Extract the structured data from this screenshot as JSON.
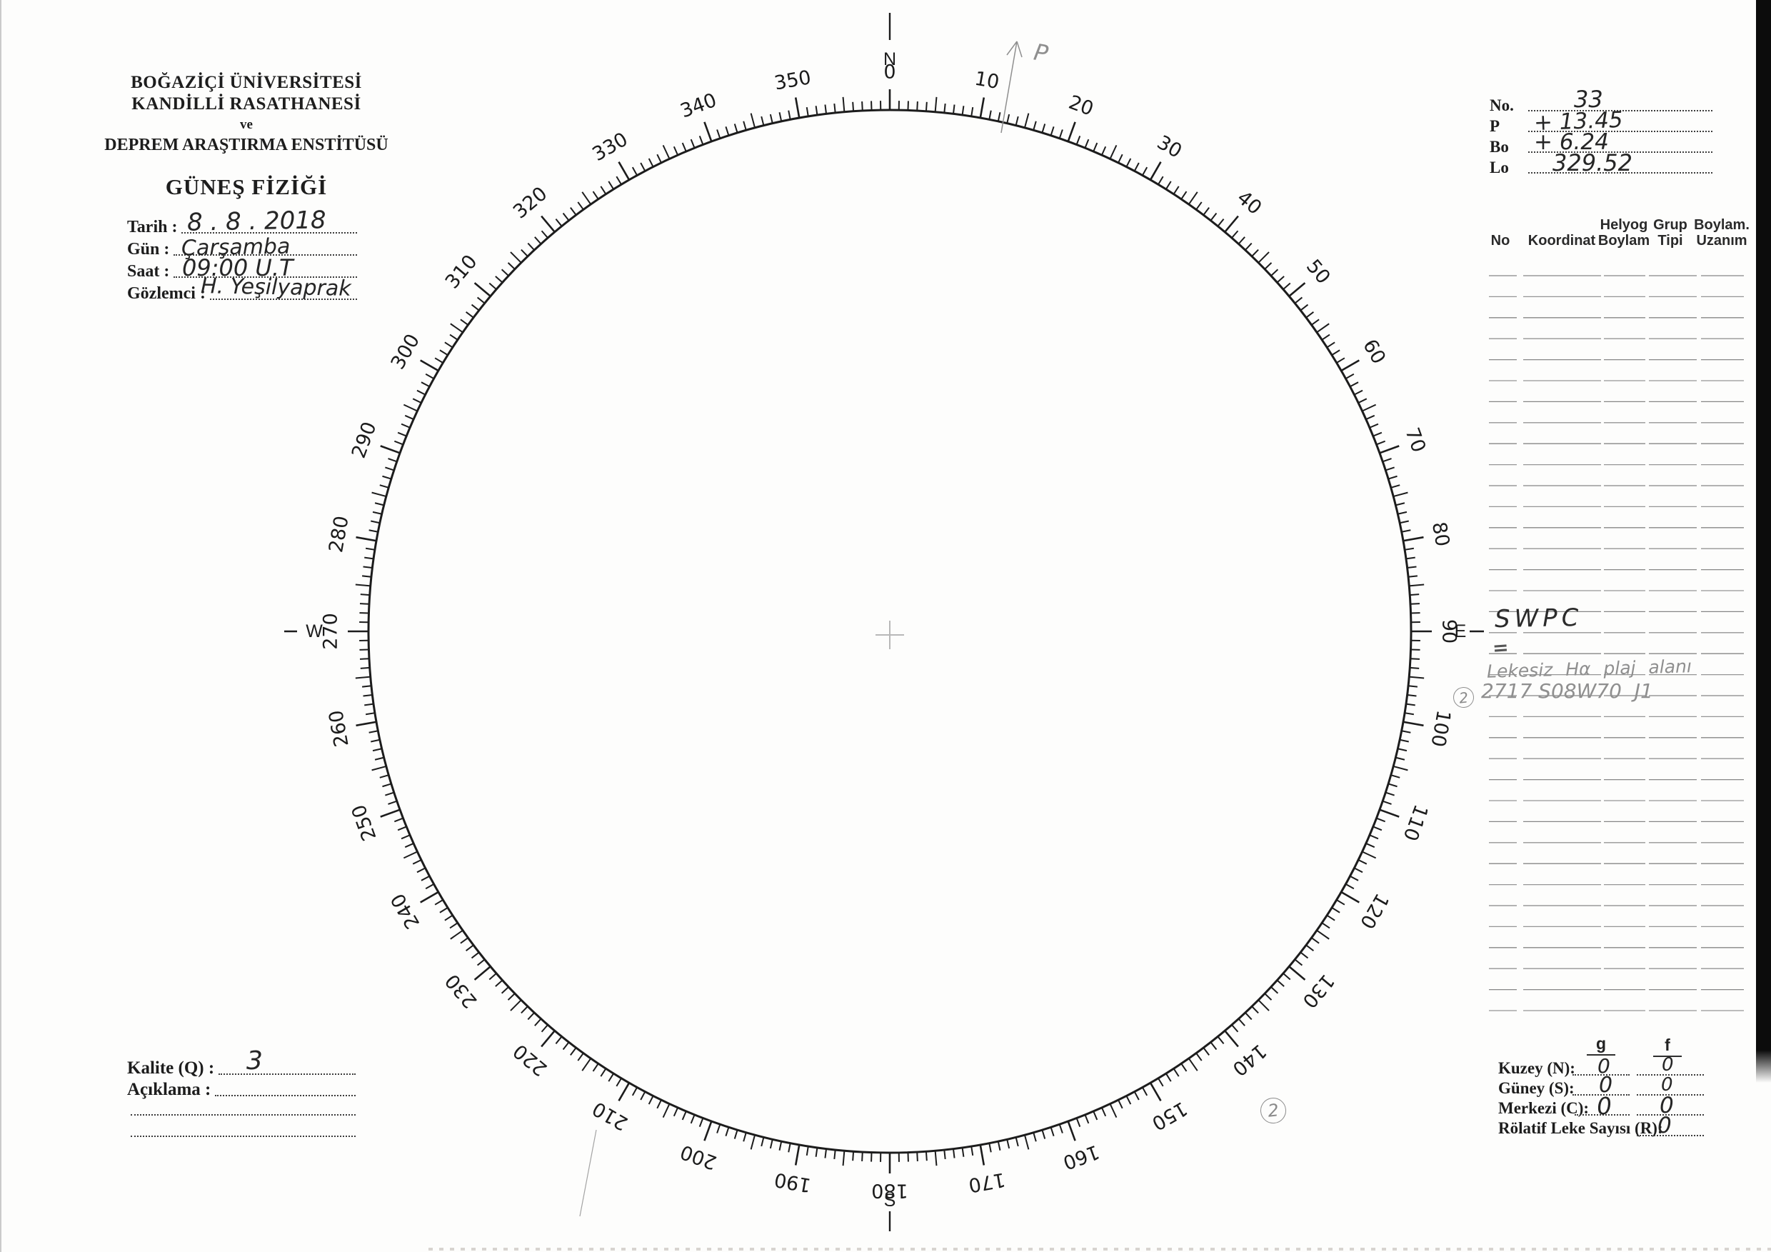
{
  "colors": {
    "ink": "#1c1c1c",
    "pencil": "#8f8f8f",
    "paper": "#fdfdfc"
  },
  "header": {
    "line1": "BOĞAZİÇİ ÜNİVERSİTESİ",
    "line2": "KANDİLLİ RASATHANESİ",
    "line3": "ve",
    "line4": "DEPREM ARAŞTIRMA ENSTİTÜSÜ",
    "form_title": "GÜNEŞ FİZİĞİ"
  },
  "observation": {
    "tarih_label": "Tarih :",
    "tarih_value": "8 . 8 . 2018",
    "gun_label": "Gün :",
    "gun_value": "Çarşamba",
    "saat_label": "Saat :",
    "saat_value": "09:00  U.T",
    "gozlemci_label": "Gözlemci :",
    "gozlemci_value": "H. Yeşilyaprak"
  },
  "ephemeris": {
    "no_label": "No.",
    "no_value": "33",
    "p_label": "P",
    "p_value": "+ 13.45",
    "bo_label": "Bo",
    "bo_value": "+ 6.24",
    "lo_label": "Lo",
    "lo_value": "329.52"
  },
  "group_table": {
    "headers": [
      {
        "l1": "No",
        "l2": ""
      },
      {
        "l1": "Koordinat",
        "l2": ""
      },
      {
        "l1": "Helyog",
        "l2": "Boylam"
      },
      {
        "l1": "Grup",
        "l2": "Tipi"
      },
      {
        "l1": "Boylam.",
        "l2": "Uzanım"
      }
    ],
    "row_count": 36,
    "annotations": {
      "source": "SWPC",
      "dash": "=",
      "note": "Lekesiz  Hα  plaj  alanı",
      "group_marker": "2",
      "entry_no": "2717",
      "entry_coord": "S08W70",
      "entry_type": "J1"
    }
  },
  "dial": {
    "degree_labels": [
      "0",
      "10",
      "20",
      "30",
      "40",
      "50",
      "60",
      "70",
      "80",
      "90",
      "100",
      "110",
      "120",
      "130",
      "140",
      "150",
      "160",
      "170",
      "180",
      "190",
      "200",
      "210",
      "220",
      "230",
      "240",
      "250",
      "260",
      "270",
      "280",
      "290",
      "300",
      "310",
      "320",
      "330",
      "340",
      "350"
    ],
    "cardinals": [
      {
        "letter": "N",
        "deg": 0
      },
      {
        "letter": "E",
        "deg": 90
      },
      {
        "letter": "S",
        "deg": 180
      },
      {
        "letter": "W",
        "deg": 270
      }
    ],
    "p_arrow_label": "P",
    "page_marker": "2"
  },
  "counts": {
    "col_g": "g",
    "col_f": "f",
    "rows": [
      {
        "label": "Kuzey (N):",
        "g": "0",
        "f": "0"
      },
      {
        "label": "Güney (S):",
        "g": "0",
        "f": "0"
      },
      {
        "label": "Merkezi (C):",
        "g": "0",
        "f": "0"
      }
    ],
    "relative_label": "Rölatif Leke Sayısı (R):",
    "relative_value": "0"
  },
  "quality": {
    "kalite_label": "Kalite (Q) :",
    "kalite_value": "3",
    "aciklama_label": "Açıklama :"
  }
}
